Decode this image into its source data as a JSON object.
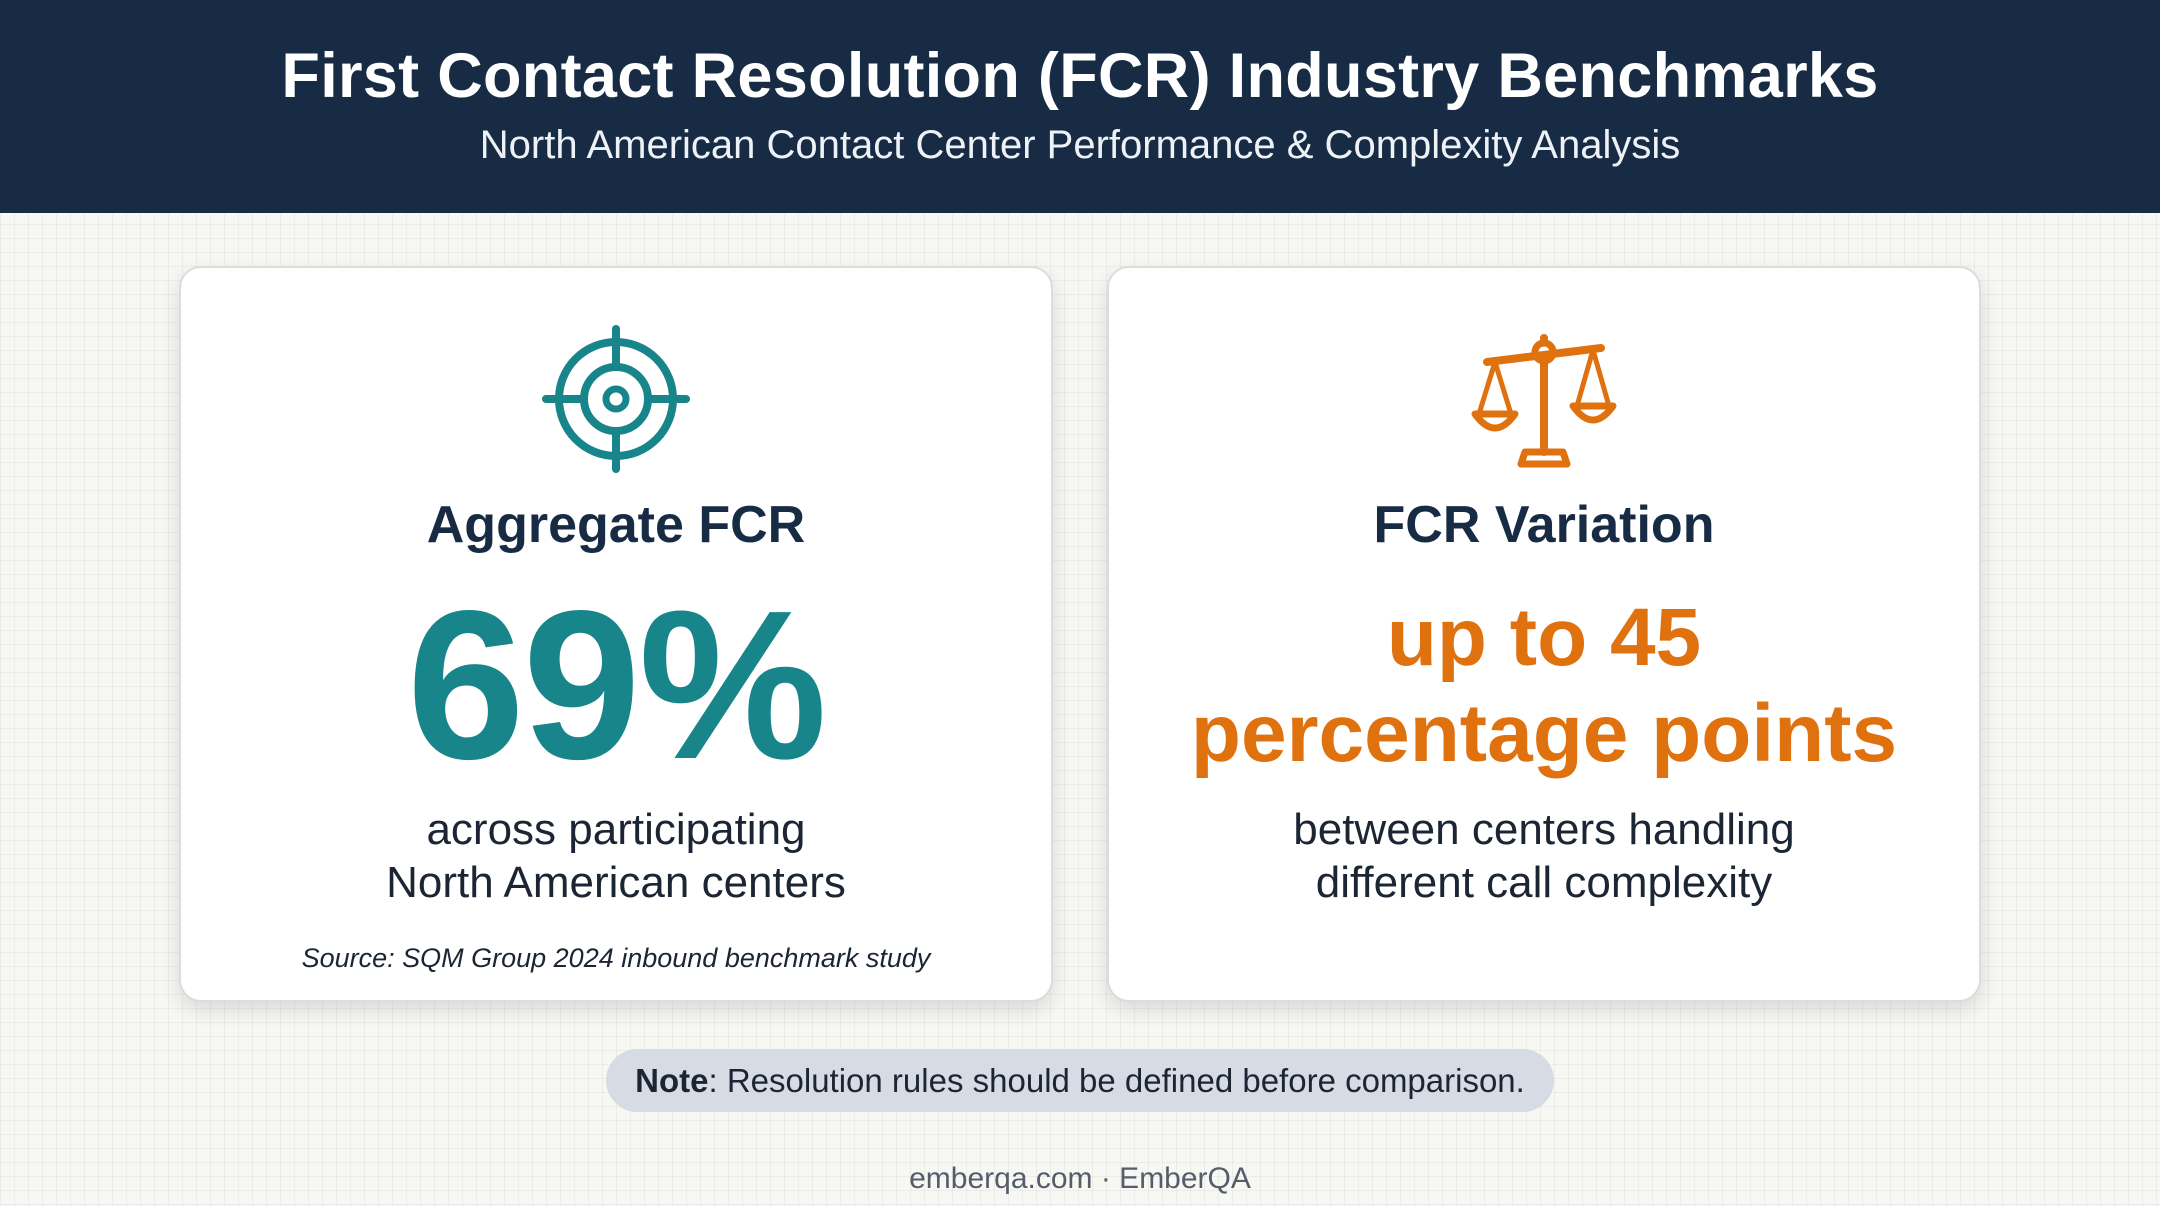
{
  "header": {
    "title": "First Contact Resolution (FCR) Industry Benchmarks",
    "subtitle": "North American Contact Center Performance & Complexity Analysis"
  },
  "cards": [
    {
      "icon": "target-icon",
      "heading": "Aggregate FCR",
      "stat": "69%",
      "description_lines": [
        "across participating",
        "North American centers"
      ],
      "source": "Source: SQM Group 2024 inbound benchmark study"
    },
    {
      "icon": "scales-icon",
      "heading": "FCR Variation",
      "stat_lines": [
        "up to 45",
        "percentage points"
      ],
      "description_lines": [
        "between centers handling",
        "different call complexity"
      ]
    }
  ],
  "note": {
    "label": "Note",
    "text": ": Resolution rules should be defined before comparison."
  },
  "footer": {
    "text": "emberqa.com · EmberQA"
  },
  "colors": {
    "header_bg": "#172b45",
    "teal_accent": "#18858a",
    "orange_accent": "#e0710f",
    "note_bg": "#d6dbe4"
  }
}
